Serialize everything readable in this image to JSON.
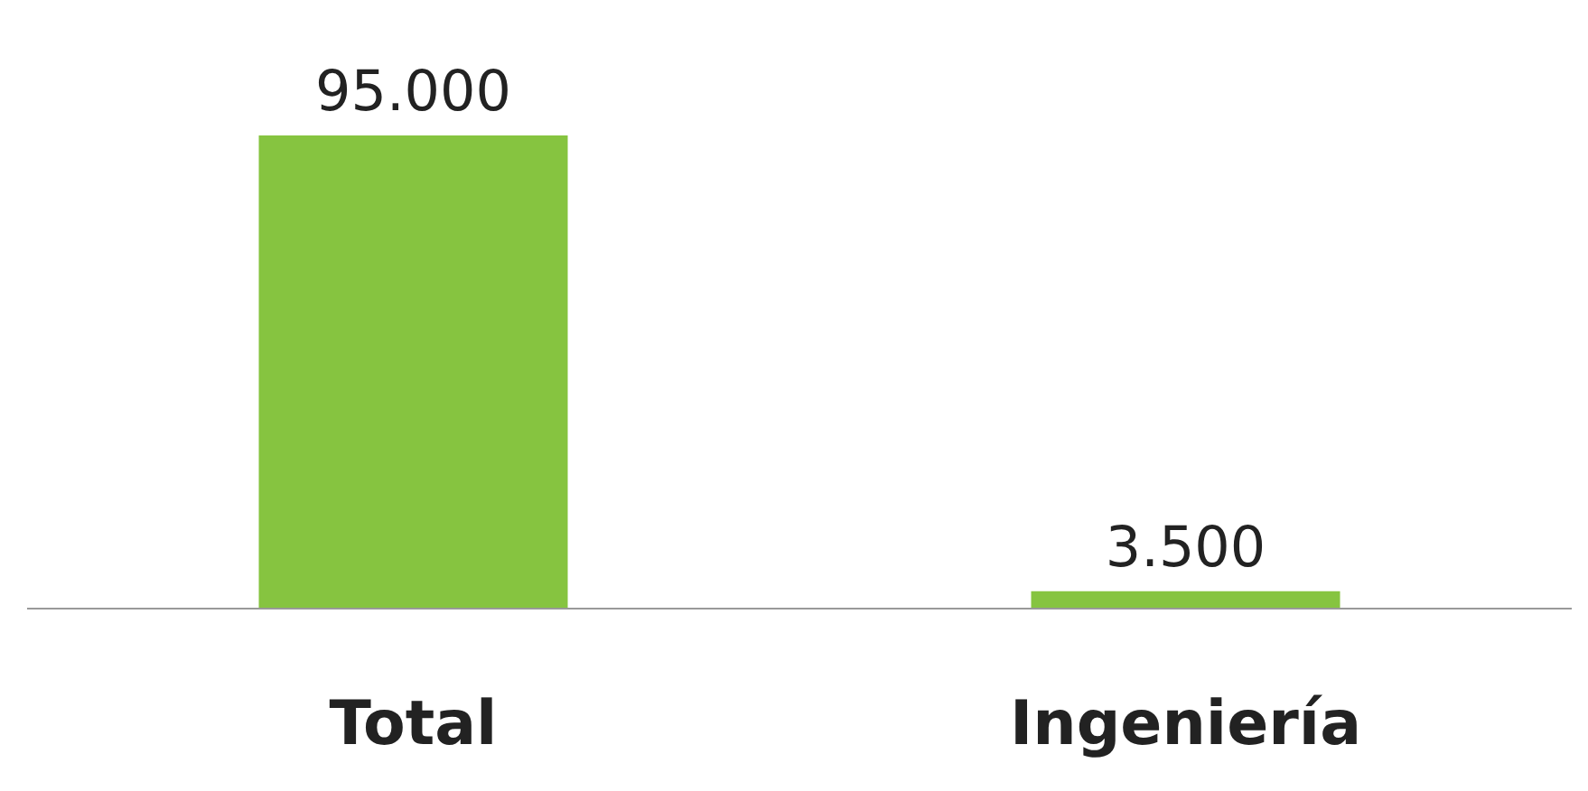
{
  "chart_data": {
    "type": "bar",
    "categories": [
      "Total",
      "Ingeniería"
    ],
    "values": [
      95000,
      3500
    ],
    "value_labels": [
      "95.000",
      "3.500"
    ],
    "color": "#86c440"
  }
}
